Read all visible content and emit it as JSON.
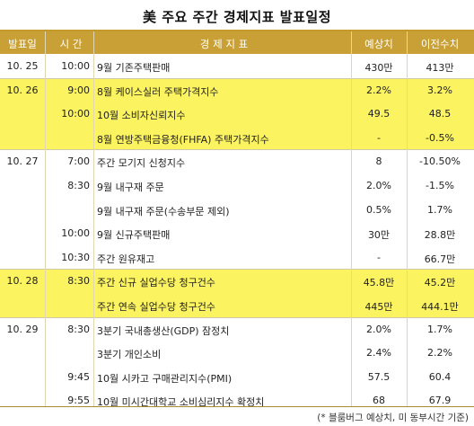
{
  "title": "美 주요 주간 경제지표 발표일정",
  "headers": {
    "date": "발표일",
    "time": "시 간",
    "name": "경 제 지 표",
    "expected": "예상치",
    "previous": "이전수치"
  },
  "rows": [
    {
      "date": "10. 25",
      "time": "10:00",
      "name": "9월 기존주택판매",
      "expected": "430만",
      "previous": "413만"
    },
    {
      "date": "10. 26",
      "time": "9:00",
      "name": "8월 케이스실러 주택가격지수",
      "expected": "2.2%",
      "previous": "3.2%"
    },
    {
      "date": "",
      "time": "10:00",
      "name": "10월 소비자신뢰지수",
      "expected": "49.5",
      "previous": "48.5"
    },
    {
      "date": "",
      "time": "",
      "name": "8월 연방주택금융청(FHFA) 주택가격지수",
      "expected": "-",
      "previous": "-0.5%"
    },
    {
      "date": "10. 27",
      "time": "7:00",
      "name": "주간 모기지 신청지수",
      "expected": "8",
      "previous": "-10.50%"
    },
    {
      "date": "",
      "time": "8:30",
      "name": "9월 내구재 주문",
      "expected": "2.0%",
      "previous": "-1.5%"
    },
    {
      "date": "",
      "time": "",
      "name": "9월 내구재 주문(수송부문 제외)",
      "expected": "0.5%",
      "previous": "1.7%"
    },
    {
      "date": "",
      "time": "10:00",
      "name": "9월 신규주택판매",
      "expected": "30만",
      "previous": "28.8만"
    },
    {
      "date": "",
      "time": "10:30",
      "name": "주간 원유재고",
      "expected": "-",
      "previous": "66.7만"
    },
    {
      "date": "10. 28",
      "time": "8:30",
      "name": "주간 신규 실업수당 청구건수",
      "expected": "45.8만",
      "previous": "45.2만"
    },
    {
      "date": "",
      "time": "",
      "name": "주간 연속 실업수당 청구건수",
      "expected": "445만",
      "previous": "444.1만"
    },
    {
      "date": "10. 29",
      "time": "8:30",
      "name": "3분기 국내총생산(GDP) 잠정치",
      "expected": "2.0%",
      "previous": "1.7%"
    },
    {
      "date": "",
      "time": "",
      "name": "3분기 개인소비",
      "expected": "2.4%",
      "previous": "2.2%"
    },
    {
      "date": "",
      "time": "9:45",
      "name": "10월 시카고 구매관리지수(PMI)",
      "expected": "57.5",
      "previous": "60.4"
    },
    {
      "date": "",
      "time": "9:55",
      "name": "10월 미시간대학교 소비심리지수 확정치",
      "expected": "68",
      "previous": "67.9"
    }
  ],
  "footnote": "(* 블룸버그 예상치, 미 동부시간 기준)",
  "colors": {
    "header_bg": "#c9a035",
    "header_text": "#ffffff",
    "highlight_bg": "#fbf35f",
    "row_bg": "#ffffff"
  }
}
